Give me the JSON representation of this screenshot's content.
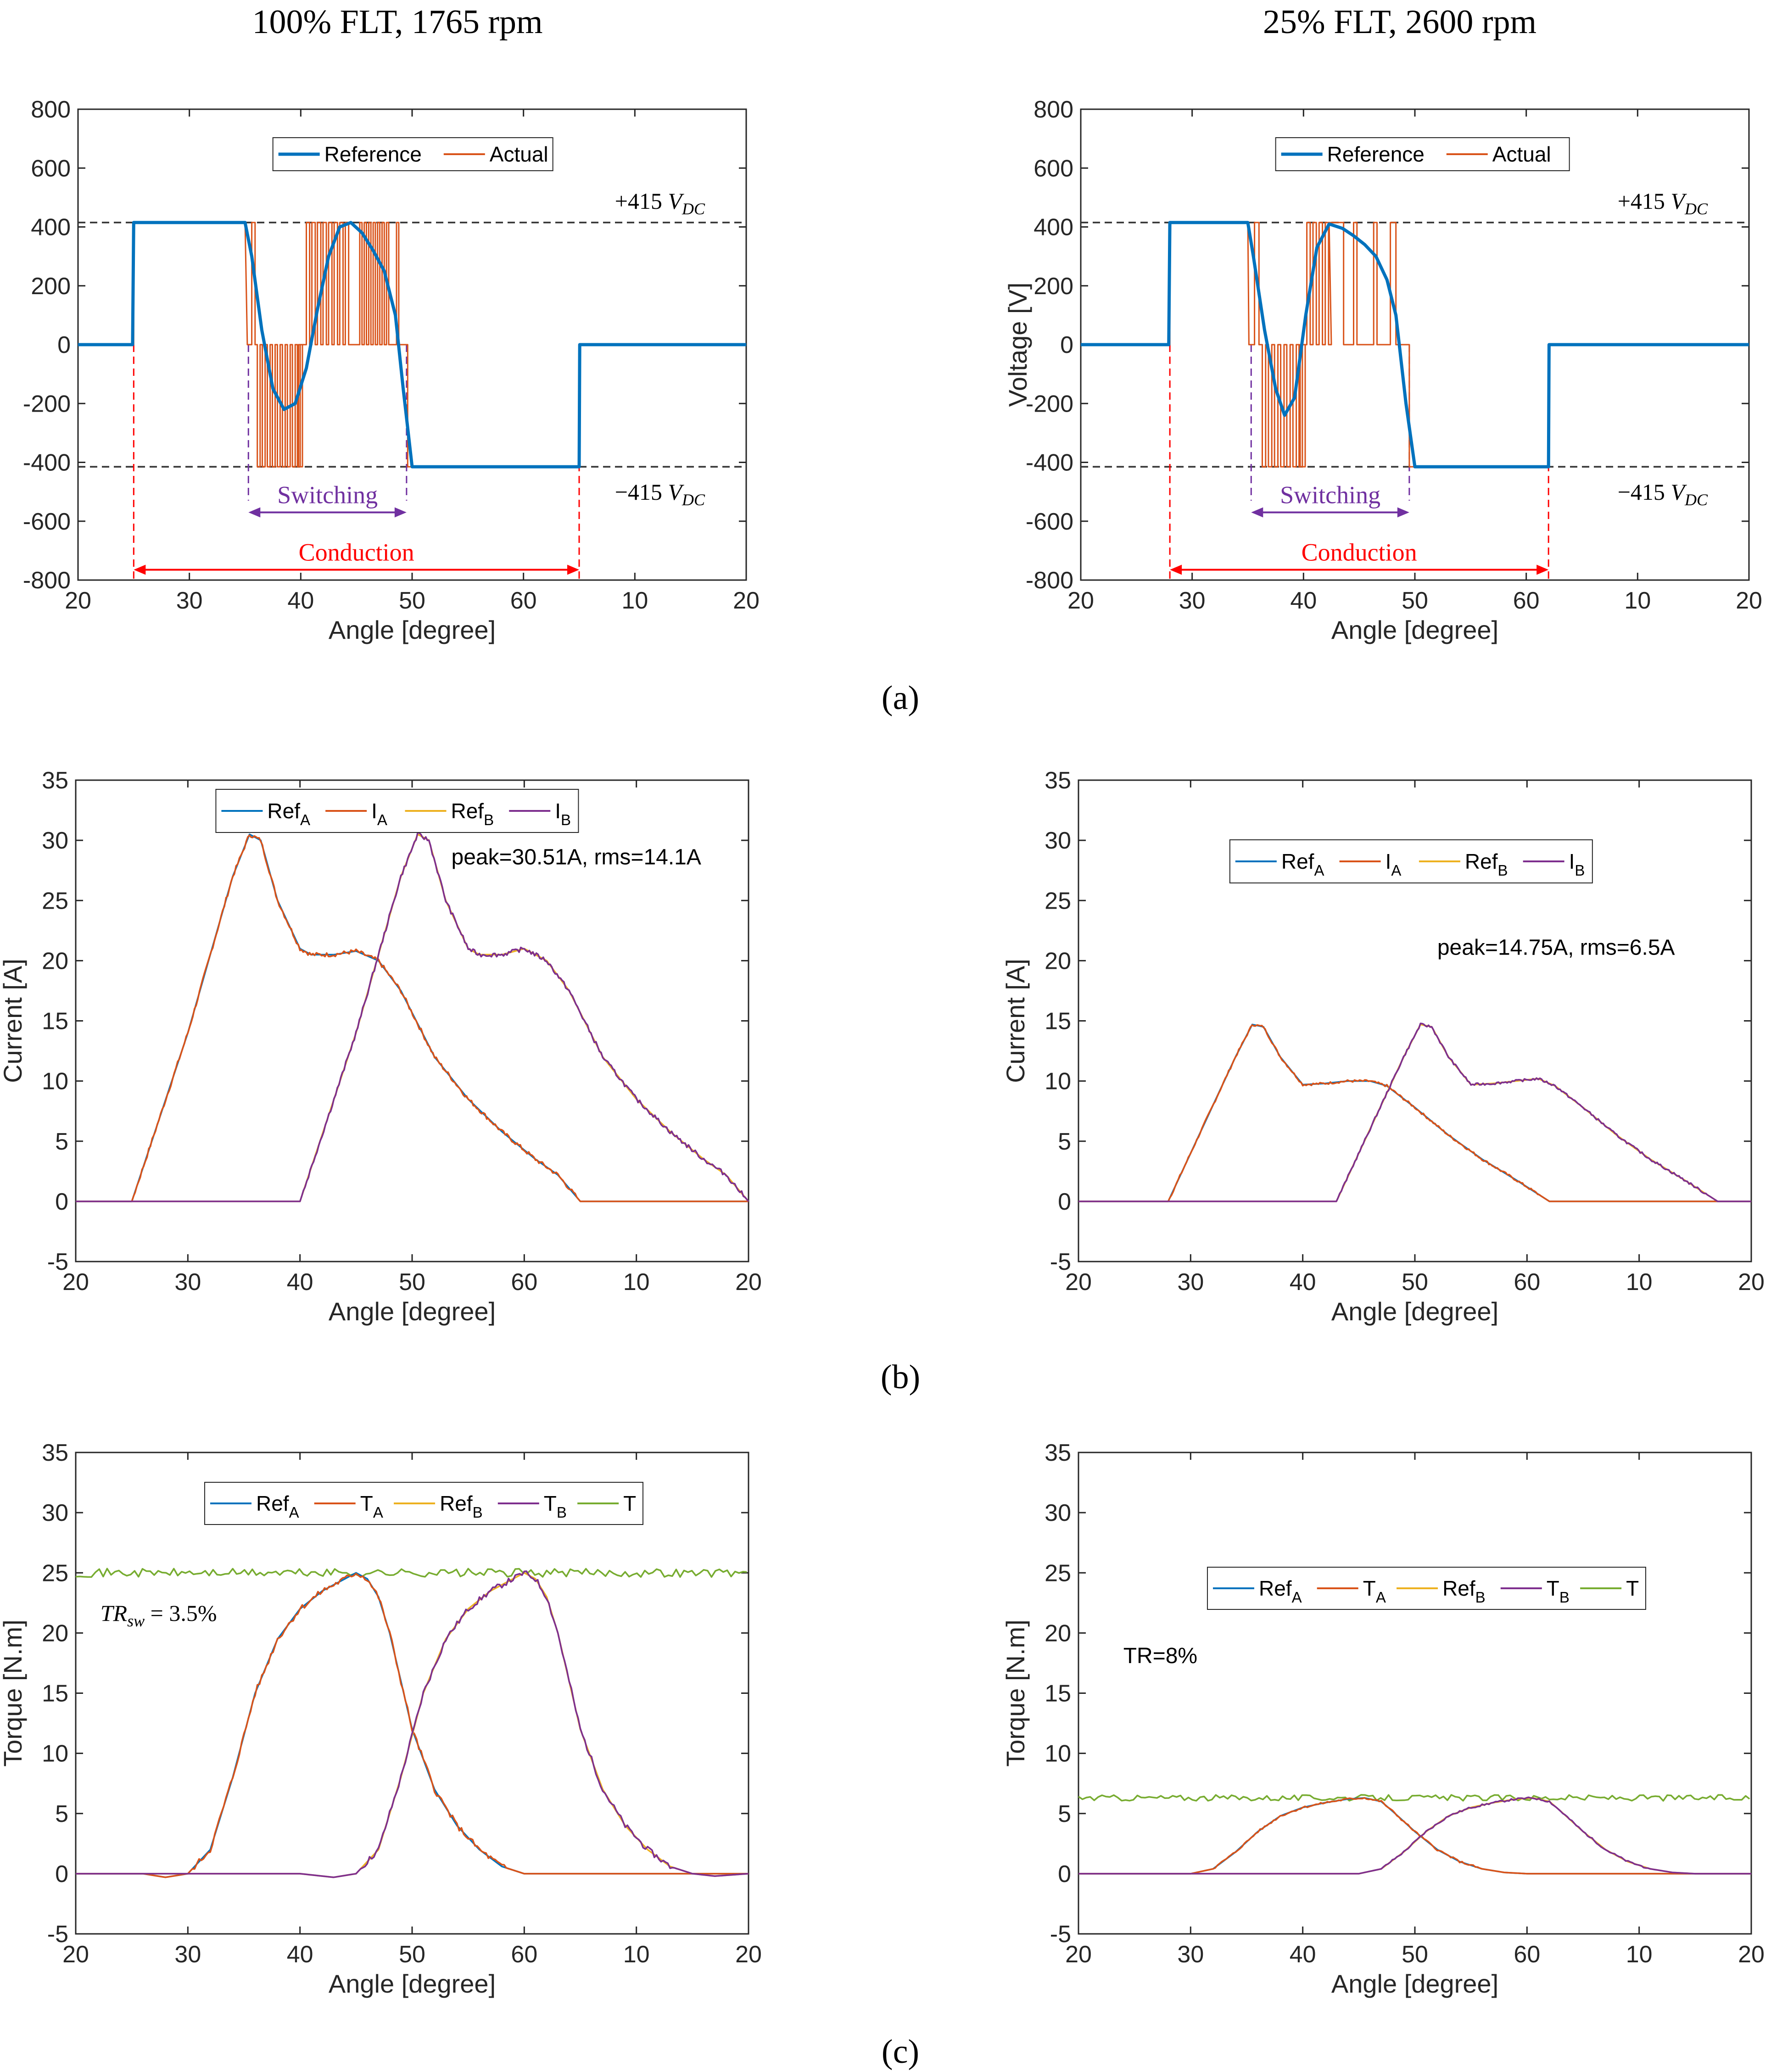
{
  "header_titles": [
    "100% FLT, 1765 rpm",
    "25% FLT, 2600 rpm"
  ],
  "panel_labels": [
    "(a)",
    "(b)",
    "(c)"
  ],
  "colors": {
    "blue": "#0072BD",
    "orange": "#D95319",
    "yellow": "#EDB120",
    "purple": "#7E2F8E",
    "green": "#77AC30",
    "red": "#FF0000",
    "annot_purple": "#7030A0",
    "dash": "#333333"
  },
  "chart_data": [
    {
      "id": "voltage-100",
      "type": "line",
      "title": "",
      "xlabel": "Angle [degree]",
      "ylabel": "",
      "xlim": [
        20,
        80
      ],
      "ylim": [
        -800,
        800
      ],
      "xtick_labels": [
        "20",
        "30",
        "40",
        "50",
        "60",
        "10",
        "20"
      ],
      "ytick_labels": [
        "800",
        "600",
        "400",
        "200",
        "0",
        "-200",
        "-400",
        "-600",
        "-800"
      ],
      "legend": [
        "Reference",
        "Actual"
      ],
      "hlines": [
        415,
        -415
      ],
      "annotations": {
        "top": "+415 V_DC",
        "bottom": "−415 V_DC",
        "switching": "Switching",
        "conduction": "Conduction"
      },
      "series": [
        {
          "name": "Reference",
          "x": [
            20,
            24.9,
            25,
            35,
            35.6,
            36.5,
            37.5,
            38.5,
            39.5,
            40.5,
            41.5,
            42.5,
            43.5,
            44.5,
            45.5,
            46.5,
            47.5,
            48.5,
            49.2,
            50,
            65,
            65.05,
            80
          ],
          "y": [
            0,
            0,
            415,
            415,
            300,
            50,
            -150,
            -220,
            -200,
            -80,
            120,
            300,
            400,
            415,
            380,
            320,
            250,
            100,
            -150,
            -415,
            -415,
            0,
            0
          ]
        },
        {
          "name": "Actual",
          "pwm": [
            {
              "start": 20,
              "end": 25,
              "levels": [
                [
                  20,
                  0
                ]
              ]
            },
            {
              "segments": [
                [
                  20,
                  0
                ],
                [
                  25,
                  415
                ],
                [
                  35,
                  415
                ],
                [
                  35.5,
                  0
                ],
                [
                  36,
                  415
                ],
                [
                  36.1,
                  0
                ]
              ]
            }
          ]
        }
      ],
      "switching_range": [
        35.3,
        49.5
      ],
      "conduction_range": [
        25,
        65
      ]
    },
    {
      "id": "voltage-25",
      "type": "line",
      "title": "",
      "xlabel": "Angle [degree]",
      "ylabel": "Voltage [V]",
      "xlim": [
        20,
        80
      ],
      "ylim": [
        -800,
        800
      ],
      "xtick_labels": [
        "20",
        "30",
        "40",
        "50",
        "60",
        "10",
        "20"
      ],
      "ytick_labels": [
        "800",
        "600",
        "400",
        "200",
        "0",
        "-200",
        "-400",
        "-600",
        "-800"
      ],
      "legend": [
        "Reference",
        "Actual"
      ],
      "hlines": [
        415,
        -415
      ],
      "annotations": {
        "top": "+415 V_DC",
        "bottom": "−415 V_DC",
        "switching": "Switching",
        "conduction": "Conduction"
      },
      "series": [
        {
          "name": "Reference",
          "x": [
            20,
            27.9,
            28,
            35,
            35.5,
            36.5,
            37.5,
            38.3,
            39.2,
            40.2,
            41.2,
            42.3,
            43.5,
            44.5,
            45.5,
            46.5,
            47.5,
            48.3,
            49.2,
            50,
            62,
            62.05,
            80
          ],
          "y": [
            0,
            0,
            415,
            415,
            300,
            50,
            -150,
            -240,
            -180,
            100,
            330,
            410,
            395,
            370,
            340,
            300,
            220,
            100,
            -200,
            -415,
            -415,
            0,
            0
          ]
        },
        {
          "name": "Actual"
        }
      ],
      "switching_range": [
        35.3,
        49.5
      ],
      "conduction_range": [
        28,
        62
      ]
    },
    {
      "id": "current-100",
      "type": "line",
      "xlabel": "Angle [degree]",
      "ylabel": "Current [A]",
      "xlim": [
        20,
        80
      ],
      "ylim": [
        -5,
        35
      ],
      "xtick_labels": [
        "20",
        "30",
        "40",
        "50",
        "60",
        "10",
        "20"
      ],
      "ytick_labels": [
        "35",
        "30",
        "25",
        "20",
        "15",
        "10",
        "5",
        "0",
        "-5"
      ],
      "legend": [
        "Ref_A",
        "I_A",
        "Ref_B",
        "I_B"
      ],
      "annotation": "peak=30.51A, rms=14.1A",
      "series": [
        {
          "name": "I_A",
          "x": [
            20,
            25,
            30,
            34,
            35.5,
            36.5,
            38,
            40,
            41,
            43,
            45,
            47,
            49,
            52,
            55,
            58,
            61,
            63,
            65,
            80
          ],
          "y": [
            0,
            0,
            14,
            27,
            30.5,
            30,
            25,
            21,
            20.5,
            20.5,
            20.8,
            20,
            17.5,
            12,
            8.5,
            5.8,
            3.5,
            2.2,
            0,
            0
          ]
        },
        {
          "name": "I_B",
          "x": [
            20,
            40,
            45,
            49,
            50.5,
            51.5,
            53,
            55,
            56,
            58,
            60,
            62,
            64,
            67,
            70,
            73,
            76,
            78,
            80
          ],
          "y": [
            0,
            0,
            14,
            27,
            30.5,
            30,
            25,
            21,
            20.5,
            20.5,
            21,
            20,
            17.5,
            12,
            8.5,
            5.8,
            3.5,
            2.2,
            0
          ]
        }
      ]
    },
    {
      "id": "current-25",
      "type": "line",
      "xlabel": "Angle [degree]",
      "ylabel": "Current [A]",
      "xlim": [
        20,
        80
      ],
      "ylim": [
        -5,
        35
      ],
      "xtick_labels": [
        "20",
        "30",
        "40",
        "50",
        "60",
        "10",
        "20"
      ],
      "ytick_labels": [
        "35",
        "30",
        "25",
        "20",
        "15",
        "10",
        "5",
        "0",
        "-5"
      ],
      "legend": [
        "Ref_A",
        "I_A",
        "Ref_B",
        "I_B"
      ],
      "annotation": "peak=14.75A, rms=6.5A",
      "series": [
        {
          "name": "I_A",
          "x": [
            20,
            28,
            31,
            34,
            35.5,
            36.5,
            38,
            40,
            42,
            44,
            46,
            47.5,
            50,
            53,
            56,
            59,
            62,
            80
          ],
          "y": [
            0,
            0,
            6,
            12,
            14.7,
            14.5,
            12,
            9.7,
            9.8,
            10,
            10,
            9.6,
            7.8,
            5.5,
            3.5,
            1.8,
            0,
            0
          ]
        },
        {
          "name": "I_B",
          "x": [
            20,
            43,
            46,
            49,
            50.5,
            51.5,
            53,
            55,
            57,
            59,
            61,
            62.5,
            65,
            68,
            71,
            74,
            77,
            80
          ],
          "y": [
            0,
            0,
            6,
            12,
            14.7,
            14.5,
            12,
            9.7,
            9.8,
            10,
            10.2,
            9.6,
            7.8,
            5.5,
            3.5,
            1.8,
            0,
            0
          ]
        }
      ]
    },
    {
      "id": "torque-100",
      "type": "line",
      "xlabel": "Angle [degree]",
      "ylabel": "Torque [N.m]",
      "xlim": [
        20,
        80
      ],
      "ylim": [
        -5,
        35
      ],
      "xtick_labels": [
        "20",
        "30",
        "40",
        "50",
        "60",
        "10",
        "20"
      ],
      "ytick_labels": [
        "35",
        "30",
        "25",
        "20",
        "15",
        "10",
        "5",
        "0",
        "-5"
      ],
      "legend": [
        "Ref_A",
        "T_A",
        "Ref_B",
        "T_B",
        "T"
      ],
      "annotation": "TR_sw = 3.5%",
      "total_torque": 25,
      "series": [
        {
          "name": "T_A",
          "x": [
            20,
            26,
            28,
            30,
            32,
            34,
            36,
            38,
            40,
            42,
            44,
            45,
            46,
            47,
            48,
            49,
            50,
            52,
            54,
            56,
            58,
            60,
            62,
            80
          ],
          "y": [
            0,
            0,
            -0.3,
            0,
            2,
            8,
            15,
            19.5,
            22,
            23.5,
            24.5,
            25,
            24.5,
            23,
            20,
            16,
            12,
            7,
            4,
            2,
            0.6,
            0,
            0,
            0
          ]
        },
        {
          "name": "T_B",
          "x": [
            20,
            40,
            41,
            43,
            45,
            47,
            49,
            51,
            53,
            55,
            57,
            59,
            60,
            61,
            62,
            63,
            64,
            65,
            67,
            69,
            71,
            73,
            75,
            77,
            80
          ],
          "y": [
            0,
            0,
            -0.1,
            -0.3,
            0,
            2,
            8,
            15,
            19.5,
            22,
            23.5,
            24.5,
            25,
            24.5,
            23,
            20,
            16,
            12,
            7,
            4,
            2,
            0.6,
            0,
            -0.2,
            0
          ]
        }
      ]
    },
    {
      "id": "torque-25",
      "type": "line",
      "xlabel": "Angle [degree]",
      "ylabel": "Torque [N.m]",
      "xlim": [
        20,
        80
      ],
      "ylim": [
        -5,
        35
      ],
      "xtick_labels": [
        "20",
        "30",
        "40",
        "50",
        "60",
        "10",
        "20"
      ],
      "ytick_labels": [
        "35",
        "30",
        "25",
        "20",
        "15",
        "10",
        "5",
        "0",
        "-5"
      ],
      "legend": [
        "Ref_A",
        "T_A",
        "Ref_B",
        "T_B",
        "T"
      ],
      "annotation": "TR=8%",
      "total_torque": 6.3,
      "series": [
        {
          "name": "T_A",
          "x": [
            20,
            30,
            32,
            34,
            36,
            38,
            40,
            42,
            44,
            45.5,
            47,
            48,
            50,
            52,
            54,
            56,
            58,
            60,
            80
          ],
          "y": [
            0,
            0,
            0.4,
            1.8,
            3.5,
            4.8,
            5.5,
            5.9,
            6.2,
            6.3,
            6,
            5.2,
            3.5,
            2,
            1,
            0.4,
            0.1,
            0,
            0
          ]
        },
        {
          "name": "T_B",
          "x": [
            20,
            45,
            47,
            49,
            51,
            53,
            55,
            57,
            59,
            60.5,
            62,
            63,
            65,
            67,
            69,
            71,
            73,
            75,
            80
          ],
          "y": [
            0,
            0,
            0.4,
            1.8,
            3.5,
            4.8,
            5.5,
            5.9,
            6.2,
            6.3,
            6,
            5.2,
            3.5,
            2,
            1,
            0.4,
            0.1,
            0,
            0
          ]
        }
      ]
    }
  ]
}
